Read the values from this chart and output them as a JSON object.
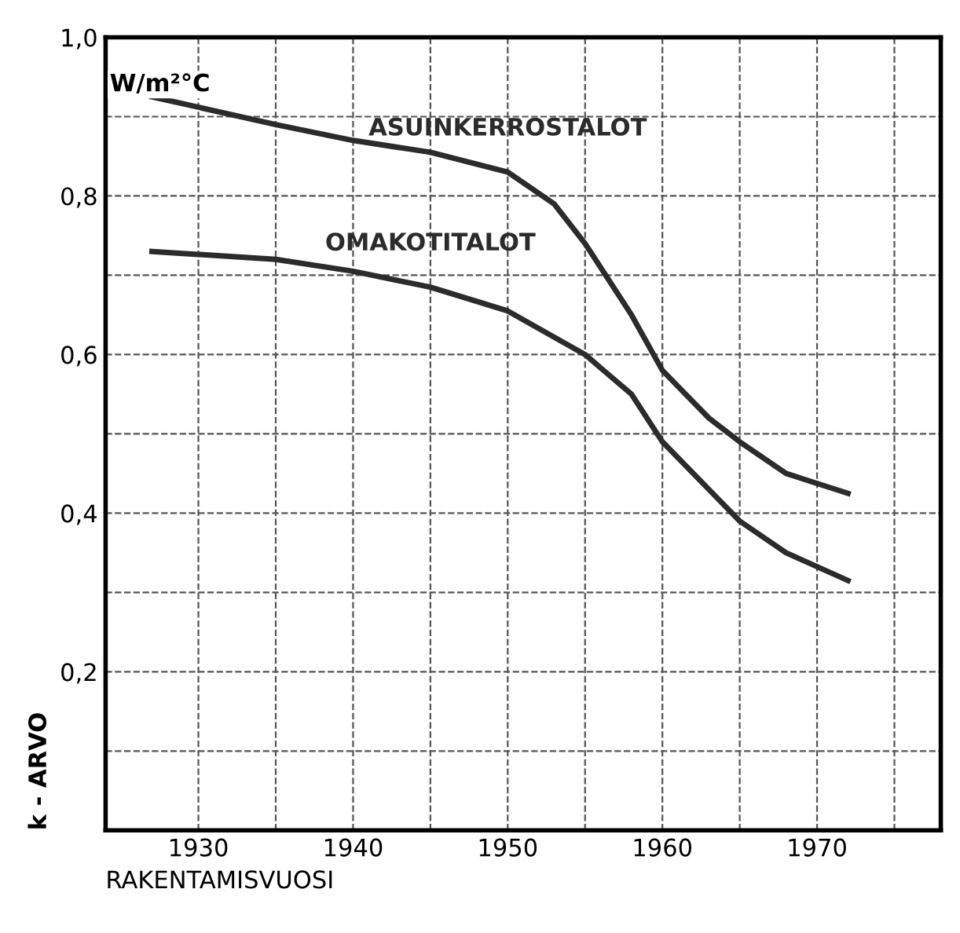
{
  "chart_data": {
    "type": "line",
    "xlabel": "RAKENTAMISVUOSI",
    "ylabel": "k - ARVO",
    "annotations": [
      "W/m²°C"
    ],
    "series": [
      {
        "name": "ASUINKERROSTALOT",
        "color": "#2b2b2b",
        "x": [
          1927,
          1935,
          1940,
          1945,
          1950,
          1953,
          1955,
          1958,
          1960,
          1963,
          1965,
          1968,
          1972
        ],
        "values": [
          0.925,
          0.89,
          0.87,
          0.855,
          0.83,
          0.79,
          0.74,
          0.65,
          0.58,
          0.52,
          0.49,
          0.45,
          0.425
        ]
      },
      {
        "name": "OMAKOTITALOT",
        "color": "#2b2b2b",
        "x": [
          1927,
          1935,
          1940,
          1945,
          1950,
          1955,
          1958,
          1960,
          1963,
          1965,
          1968,
          1972
        ],
        "values": [
          0.73,
          0.72,
          0.705,
          0.685,
          0.655,
          0.6,
          0.55,
          0.49,
          0.43,
          0.39,
          0.35,
          0.315
        ]
      }
    ],
    "xlim": [
      1924,
      1978
    ],
    "ylim": [
      0,
      1.0
    ],
    "xticks": [
      1930,
      {
        "value": 1935,
        "label": null
      },
      1940,
      {
        "value": 1945,
        "label": null
      },
      1950,
      {
        "value": 1955,
        "label": null
      },
      1960,
      {
        "value": 1965,
        "label": null
      },
      1970,
      {
        "value": 1975,
        "label": null
      }
    ],
    "yticks": [
      {
        "value": 0.1,
        "label": null
      },
      {
        "value": 0.2,
        "label": "0,2"
      },
      {
        "value": 0.3,
        "label": null
      },
      {
        "value": 0.4,
        "label": "0,4"
      },
      {
        "value": 0.5,
        "label": null
      },
      {
        "value": 0.6,
        "label": "0,6"
      },
      {
        "value": 0.7,
        "label": null
      },
      {
        "value": 0.8,
        "label": "0,8"
      },
      {
        "value": 0.9,
        "label": null
      },
      {
        "value": 1.0,
        "label": "1,0"
      }
    ],
    "grid": true,
    "line_style": "solid",
    "legend": false
  }
}
